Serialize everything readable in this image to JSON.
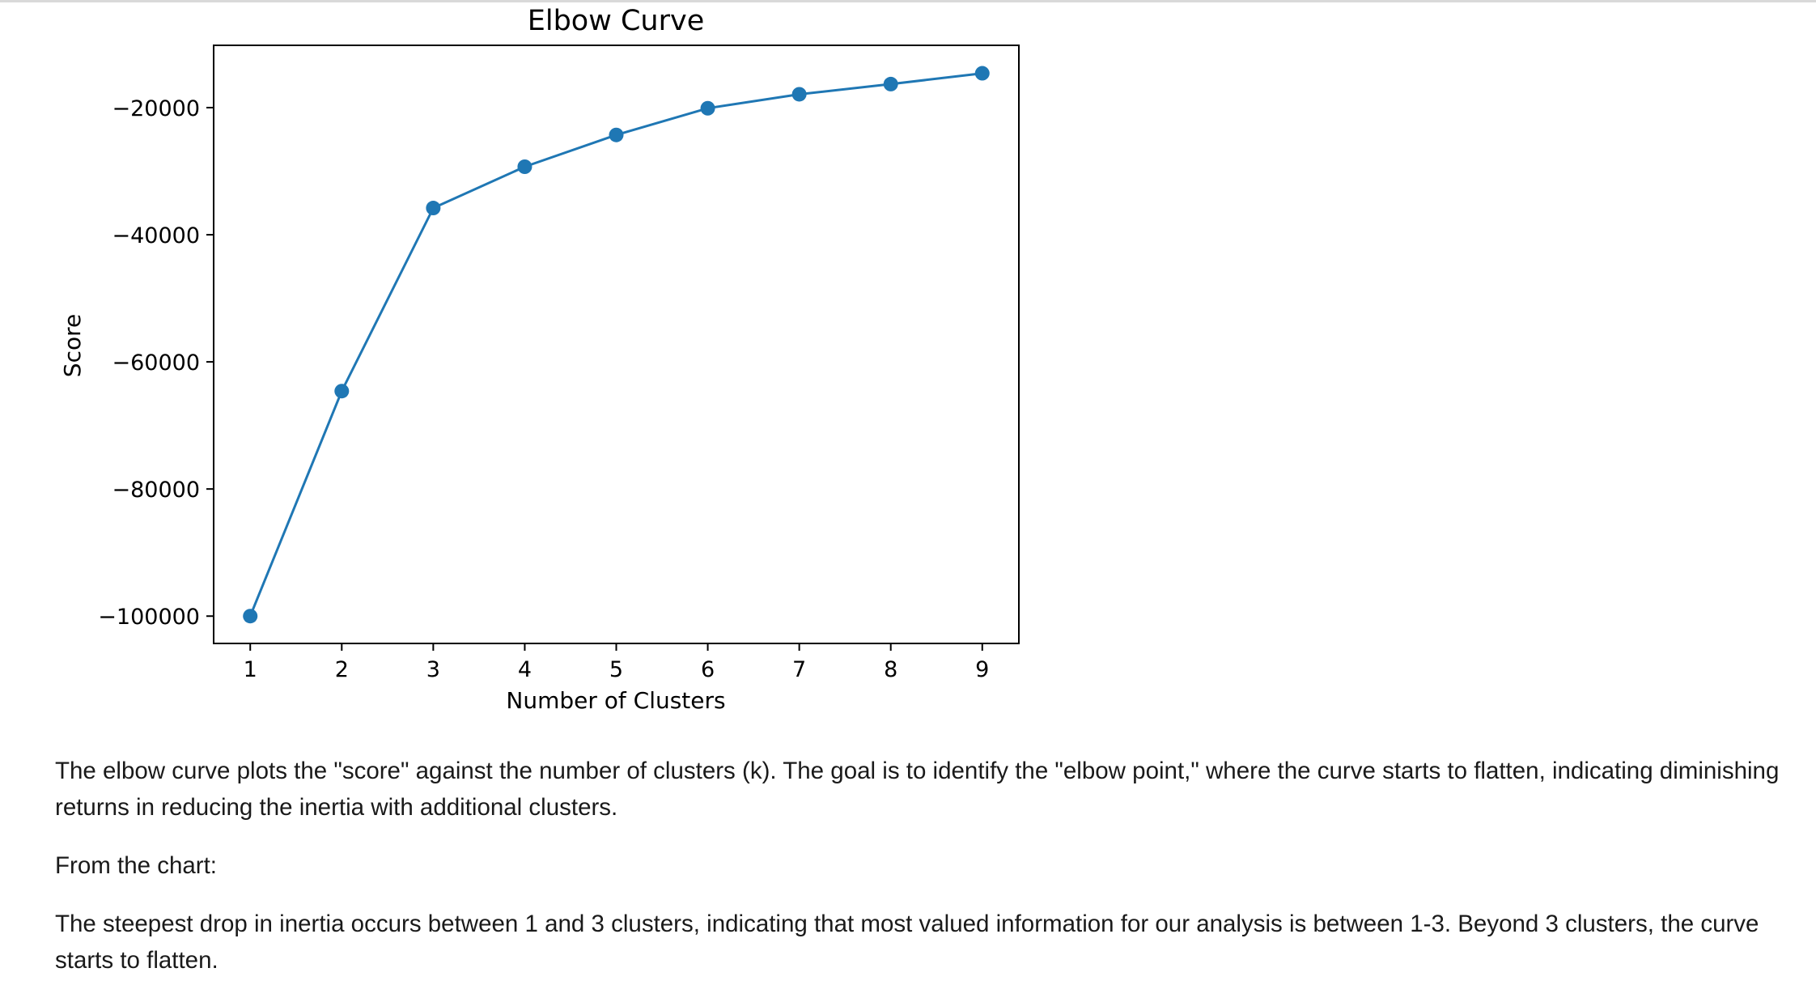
{
  "chart_data": {
    "type": "line",
    "title": "Elbow Curve",
    "xlabel": "Number of Clusters",
    "ylabel": "Score",
    "x": [
      1,
      2,
      3,
      4,
      5,
      6,
      7,
      8,
      9
    ],
    "y": [
      -100000,
      -64600,
      -35800,
      -29300,
      -24300,
      -20100,
      -17900,
      -16300,
      -14600
    ],
    "x_ticks": [
      "1",
      "2",
      "3",
      "4",
      "5",
      "6",
      "7",
      "8",
      "9"
    ],
    "y_ticks": [
      -20000,
      -40000,
      -60000,
      -80000,
      -100000
    ],
    "y_tick_labels": [
      "−20000",
      "−40000",
      "−60000",
      "−80000",
      "−100000"
    ],
    "xlim": [
      0.6,
      9.4
    ],
    "ylim": [
      -104300,
      -10200
    ],
    "grid": false,
    "line_color": "#1f77b4",
    "marker": "circle"
  },
  "text": {
    "paragraph1": "The elbow curve plots the \"score\" against the number of clusters (k). The goal is to identify the \"elbow point,\" where the curve starts to flatten, indicating diminishing returns in reducing the inertia with additional clusters.",
    "paragraph2": "From the chart:",
    "paragraph3": "The steepest drop in inertia occurs between 1 and 3 clusters, indicating that most valued information for our analysis is between 1-3. Beyond 3 clusters, the curve starts to flatten."
  }
}
